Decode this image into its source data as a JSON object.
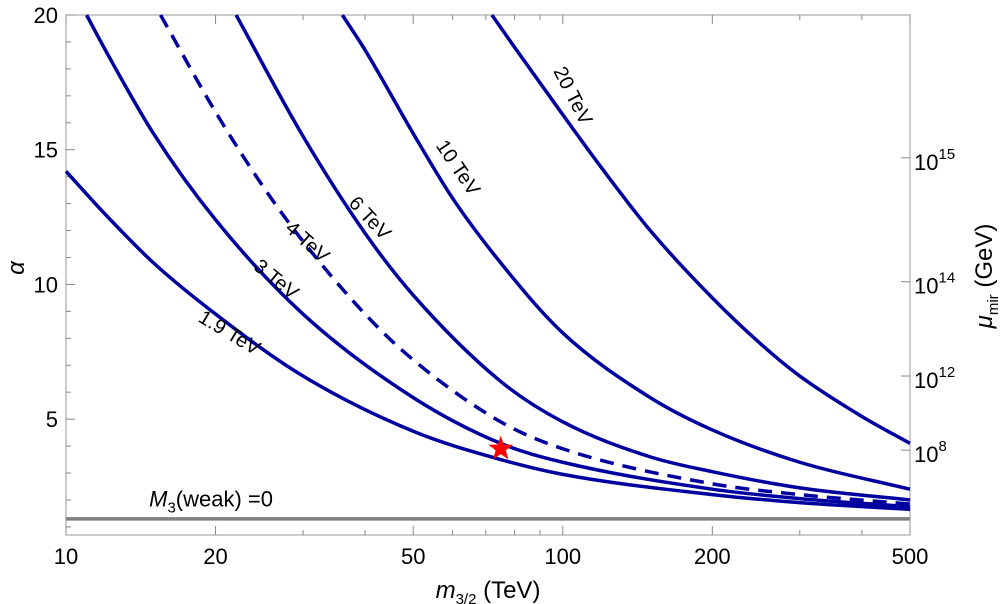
{
  "chart_data": {
    "type": "line",
    "title": "",
    "xlabel": {
      "main": "m",
      "sub": "3/2",
      "unit": " (TeV)"
    },
    "ylabel": "α",
    "y2label": {
      "main": "μ",
      "sub": "mir",
      "unit": " (GeV)"
    },
    "xscale": "log",
    "xlim": [
      10,
      500
    ],
    "ylim": [
      0.7,
      20
    ],
    "xticks": [
      10,
      20,
      50,
      100,
      200,
      500
    ],
    "yticks": [
      5,
      10,
      15,
      20
    ],
    "y2ticks": [
      {
        "base": "10",
        "exp": "8",
        "alpha": 3.85
      },
      {
        "base": "10",
        "exp": "12",
        "alpha": 6.6
      },
      {
        "base": "10",
        "exp": "14",
        "alpha": 10.1
      },
      {
        "base": "10",
        "exp": "15",
        "alpha": 14.7
      }
    ],
    "series": [
      {
        "name": "1.9 TeV",
        "color": "#0000a0",
        "dashed": false,
        "x": [
          10,
          12,
          15,
          20,
          30,
          50,
          75,
          100,
          200,
          300,
          500
        ],
        "y": [
          14.2,
          12.6,
          10.8,
          8.9,
          6.6,
          4.55,
          3.5,
          2.95,
          2.2,
          1.9,
          1.65
        ]
      },
      {
        "name": "3 TeV",
        "color": "#0000a0",
        "dashed": false,
        "x": [
          11,
          12,
          15,
          20,
          30,
          50,
          75,
          100,
          200,
          300,
          500
        ],
        "y": [
          20,
          18.7,
          15.6,
          12.4,
          8.9,
          5.8,
          4.1,
          3.4,
          2.4,
          2.05,
          1.75
        ]
      },
      {
        "name": "4 TeV",
        "color": "#0000a0",
        "dashed": true,
        "x": [
          15.5,
          20,
          25,
          30,
          40,
          50,
          75,
          100,
          200,
          300,
          500
        ],
        "y": [
          20,
          16.4,
          13.6,
          11.6,
          8.9,
          7.2,
          4.9,
          3.9,
          2.6,
          2.2,
          1.85
        ]
      },
      {
        "name": "6 TeV",
        "color": "#0000a0",
        "dashed": false,
        "x": [
          22,
          30,
          40,
          50,
          75,
          100,
          150,
          200,
          300,
          500
        ],
        "y": [
          20,
          15.5,
          11.9,
          9.6,
          6.4,
          4.9,
          3.6,
          3.05,
          2.45,
          2.0
        ]
      },
      {
        "name": "10 TeV",
        "color": "#0000a0",
        "dashed": false,
        "x": [
          36,
          40,
          50,
          60,
          75,
          100,
          150,
          200,
          300,
          500
        ],
        "y": [
          20,
          18.7,
          15.6,
          13.2,
          10.8,
          8.2,
          5.8,
          4.6,
          3.4,
          2.4
        ]
      },
      {
        "name": "20 TeV",
        "color": "#0000a0",
        "dashed": false,
        "x": [
          72,
          80,
          100,
          120,
          150,
          200,
          250,
          300,
          400,
          500
        ],
        "y": [
          20,
          18.8,
          16.3,
          14.3,
          12.0,
          9.5,
          7.8,
          6.6,
          5.1,
          4.1
        ]
      }
    ],
    "curve_labels": [
      {
        "text": "1.9 TeV",
        "x": 21,
        "y": 8.0,
        "angle": 31
      },
      {
        "text": "3 TeV",
        "x": 26,
        "y": 10.0,
        "angle": 39
      },
      {
        "text": "4 TeV",
        "x": 30,
        "y": 11.4,
        "angle": 42
      },
      {
        "text": "6 TeV",
        "x": 40,
        "y": 12.3,
        "angle": 47
      },
      {
        "text": "10 TeV",
        "x": 60,
        "y": 14.2,
        "angle": 56
      },
      {
        "text": "20 TeV",
        "x": 102,
        "y": 16.9,
        "angle": 63
      }
    ],
    "reference_line": {
      "y": 1.3,
      "color": "#808080",
      "label": {
        "main": "M",
        "sub": "3",
        "rest": "(weak) =0"
      },
      "label_x": 14.7,
      "label_y": 1.75
    },
    "marker": {
      "x": 75,
      "y": 3.9,
      "symbol": "star",
      "color": "#ff0000"
    }
  }
}
